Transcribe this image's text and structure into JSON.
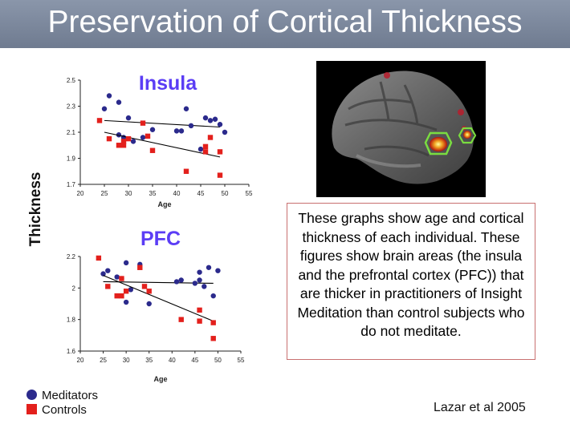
{
  "title": "Preservation of Cortical Thickness",
  "y_axis_shared": "Thickness",
  "description": "These graphs show age and cortical thickness of each individual.  These figures show brain areas (the insula and the prefrontal cortex (PFC)) that are thicker in practitioners of Insight Meditation than control subjects who do not meditate.",
  "legend": [
    {
      "label": "Meditators",
      "color": "#2b2a8c",
      "shape": "circle"
    },
    {
      "label": "Controls",
      "color": "#e3201c",
      "shape": "square"
    }
  ],
  "citation": "Lazar et al 2005",
  "colors": {
    "meditators": "#2b2a8c",
    "controls": "#e3201c",
    "title_color": "#5b3df5"
  },
  "chart_data": [
    {
      "type": "scatter",
      "title": "Insula",
      "xlabel": "Age",
      "xlim": [
        20,
        55
      ],
      "ylim": [
        1.7,
        2.5
      ],
      "xticks": [
        20,
        25,
        30,
        35,
        40,
        45,
        50,
        55
      ],
      "yticks": [
        "1.7",
        "1.9",
        "2.1",
        "2.3",
        "2.5"
      ],
      "grid": false,
      "series": [
        {
          "name": "Meditators",
          "marker": "circle",
          "points": [
            [
              25,
              2.28
            ],
            [
              26,
              2.38
            ],
            [
              28,
              2.33
            ],
            [
              28,
              2.08
            ],
            [
              29,
              2.06
            ],
            [
              30,
              2.21
            ],
            [
              31,
              2.03
            ],
            [
              33,
              2.06
            ],
            [
              35,
              2.12
            ],
            [
              40,
              2.11
            ],
            [
              41,
              2.11
            ],
            [
              42,
              2.28
            ],
            [
              43,
              2.15
            ],
            [
              45,
              1.97
            ],
            [
              46,
              2.21
            ],
            [
              47,
              2.19
            ],
            [
              48,
              2.2
            ],
            [
              49,
              2.16
            ],
            [
              50,
              2.1
            ]
          ],
          "trend": [
            [
              25,
              2.19
            ],
            [
              49,
              2.14
            ]
          ]
        },
        {
          "name": "Controls",
          "marker": "square",
          "points": [
            [
              24,
              2.19
            ],
            [
              26,
              2.05
            ],
            [
              28,
              2.0
            ],
            [
              29,
              2.0
            ],
            [
              29,
              2.03
            ],
            [
              30,
              2.05
            ],
            [
              33,
              2.17
            ],
            [
              34,
              2.07
            ],
            [
              35,
              1.96
            ],
            [
              42,
              1.8
            ],
            [
              46,
              1.95
            ],
            [
              46,
              1.99
            ],
            [
              47,
              2.06
            ],
            [
              49,
              1.77
            ],
            [
              49,
              1.95
            ]
          ],
          "trend": [
            [
              25,
              2.1
            ],
            [
              49,
              1.91
            ]
          ]
        }
      ]
    },
    {
      "type": "scatter",
      "title": "PFC",
      "xlabel": "Age",
      "xlim": [
        20,
        55
      ],
      "ylim": [
        1.6,
        2.2
      ],
      "xticks": [
        20,
        25,
        30,
        35,
        40,
        45,
        50,
        55
      ],
      "yticks": [
        "1.6",
        "1.8",
        "2",
        "2.2"
      ],
      "grid": false,
      "series": [
        {
          "name": "Meditators",
          "marker": "circle",
          "points": [
            [
              25,
              2.09
            ],
            [
              26,
              2.11
            ],
            [
              28,
              2.07
            ],
            [
              29,
              2.06
            ],
            [
              30,
              2.16
            ],
            [
              30,
              1.91
            ],
            [
              31,
              1.99
            ],
            [
              33,
              2.15
            ],
            [
              35,
              1.9
            ],
            [
              41,
              2.04
            ],
            [
              42,
              2.05
            ],
            [
              45,
              2.03
            ],
            [
              46,
              2.1
            ],
            [
              46,
              2.05
            ],
            [
              47,
              2.01
            ],
            [
              48,
              2.13
            ],
            [
              49,
              1.95
            ],
            [
              50,
              2.11
            ]
          ],
          "trend": [
            [
              25,
              2.04
            ],
            [
              49,
              2.03
            ]
          ]
        },
        {
          "name": "Controls",
          "marker": "square",
          "points": [
            [
              24,
              2.19
            ],
            [
              26,
              2.01
            ],
            [
              28,
              1.95
            ],
            [
              29,
              1.95
            ],
            [
              29,
              2.06
            ],
            [
              30,
              1.98
            ],
            [
              33,
              2.13
            ],
            [
              34,
              2.01
            ],
            [
              35,
              1.98
            ],
            [
              42,
              1.8
            ],
            [
              46,
              1.86
            ],
            [
              46,
              1.79
            ],
            [
              49,
              1.68
            ],
            [
              49,
              1.78
            ]
          ],
          "trend": [
            [
              25,
              2.08
            ],
            [
              49,
              1.79
            ]
          ]
        }
      ]
    }
  ]
}
